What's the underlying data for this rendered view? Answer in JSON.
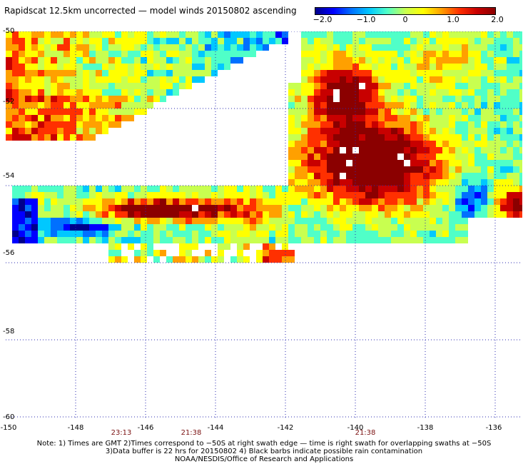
{
  "header": {
    "title": "Rapidscat 12.5km uncorrected — model winds 20150802 ascending"
  },
  "colorbar": {
    "ticks": [
      "−2.0",
      "−1.0",
      "0",
      "1.0",
      "2.0"
    ],
    "min": -2.0,
    "max": 2.0,
    "colors": [
      "#00008b",
      "#0000ff",
      "#0070ff",
      "#00c8ff",
      "#50ffc8",
      "#c8ff50",
      "#ffff00",
      "#ffa000",
      "#ff3000",
      "#c80000",
      "#8b0000"
    ]
  },
  "map": {
    "lat_labels": [
      "-50",
      "-52",
      "-54",
      "-56",
      "-58",
      "-60"
    ],
    "lon_labels": [
      "-150",
      "-148",
      "-146",
      "-144",
      "-142",
      "-140",
      "-138",
      "-136"
    ],
    "lat_range": [
      -60,
      -50
    ],
    "lon_range": [
      -150,
      -135
    ]
  },
  "times": [
    "23:13",
    "21:38",
    "21:38"
  ],
  "notes": {
    "line1": "Note: 1) Times are GMT 2)Times correspond to −50S at right swath edge — time is right swath for overlapping swaths at −50S",
    "line2": "3)Data buffer is 22 hrs for 20150802 4) Black barbs indicate possible rain contamination",
    "line3": "NOAA/NESDIS/Office of Research and Applications"
  }
}
